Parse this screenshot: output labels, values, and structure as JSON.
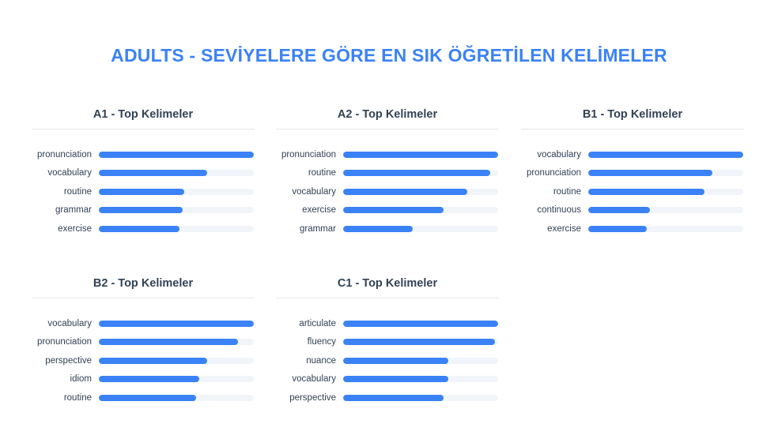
{
  "page": {
    "title": "ADULTS - SEVİYELERE GÖRE EN SIK ÖĞRETİLEN KELİMELER"
  },
  "colors": {
    "accent": "#3b82f6",
    "track": "#f1f5f9",
    "text": "#334155"
  },
  "chart_data": [
    {
      "type": "bar",
      "title": "A1 - Top Kelimeler",
      "categories": [
        "pronunciation",
        "vocabulary",
        "routine",
        "grammar",
        "exercise"
      ],
      "values": [
        100,
        70,
        55,
        54,
        52
      ]
    },
    {
      "type": "bar",
      "title": "A2 - Top Kelimeler",
      "categories": [
        "pronunciation",
        "routine",
        "vocabulary",
        "exercise",
        "grammar"
      ],
      "values": [
        100,
        95,
        80,
        65,
        45
      ]
    },
    {
      "type": "bar",
      "title": "B1 - Top Kelimeler",
      "categories": [
        "vocabulary",
        "pronunciation",
        "routine",
        "continuous",
        "exercise"
      ],
      "values": [
        100,
        80,
        75,
        40,
        38
      ]
    },
    {
      "type": "bar",
      "title": "B2 - Top Kelimeler",
      "categories": [
        "vocabulary",
        "pronunciation",
        "perspective",
        "idiom",
        "routine"
      ],
      "values": [
        100,
        90,
        70,
        65,
        63
      ]
    },
    {
      "type": "bar",
      "title": "C1 - Top Kelimeler",
      "categories": [
        "articulate",
        "fluency",
        "nuance",
        "vocabulary",
        "perspective"
      ],
      "values": [
        100,
        98,
        68,
        68,
        65
      ]
    }
  ]
}
